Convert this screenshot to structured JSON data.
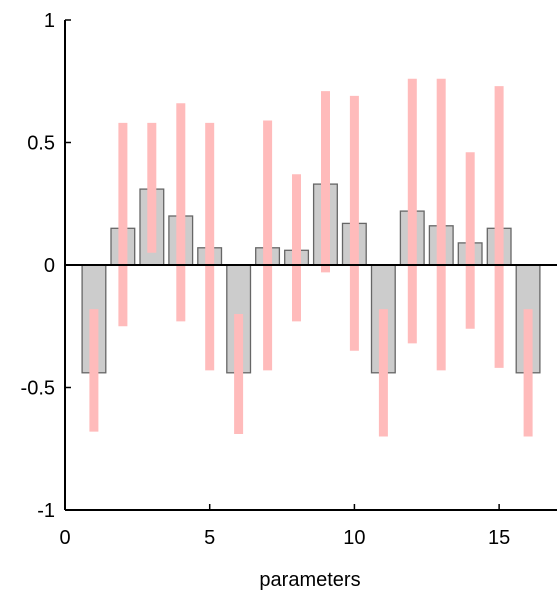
{
  "chart_data": {
    "type": "bar",
    "title": "",
    "xlabel": "parameters",
    "ylabel": "",
    "xlim": [
      0,
      17
    ],
    "ylim": [
      -1,
      1
    ],
    "xticks": [
      0,
      5,
      10,
      15
    ],
    "xtick_labels": [
      "0",
      "5",
      "10",
      "15"
    ],
    "yticks": [
      -1,
      -0.5,
      0,
      0.5,
      1
    ],
    "ytick_labels": [
      "-1",
      "-0.5",
      "0",
      "0.5",
      "1"
    ],
    "grid": false,
    "bars": {
      "x": [
        1,
        2,
        3,
        4,
        5,
        6,
        7,
        8,
        9,
        10,
        11,
        12,
        13,
        14,
        15,
        16
      ],
      "values": [
        -0.44,
        0.15,
        0.31,
        0.2,
        0.07,
        -0.44,
        0.07,
        0.06,
        0.33,
        0.17,
        -0.44,
        0.22,
        0.16,
        0.09,
        0.15,
        -0.44
      ],
      "fill": "#cccccc",
      "stroke": "#666666"
    },
    "ranges": {
      "x": [
        1,
        2,
        3,
        4,
        5,
        6,
        7,
        8,
        9,
        10,
        11,
        12,
        13,
        14,
        15,
        16
      ],
      "low": [
        -0.68,
        -0.25,
        0.05,
        -0.23,
        -0.43,
        -0.69,
        -0.43,
        -0.23,
        -0.03,
        -0.35,
        -0.7,
        -0.32,
        -0.43,
        -0.26,
        -0.42,
        -0.7
      ],
      "high": [
        -0.18,
        0.58,
        0.58,
        0.66,
        0.58,
        -0.2,
        0.59,
        0.37,
        0.71,
        0.69,
        -0.18,
        0.76,
        0.76,
        0.46,
        0.73,
        -0.18
      ],
      "color": "#ffbbbb"
    },
    "axis_color": "#000000"
  }
}
